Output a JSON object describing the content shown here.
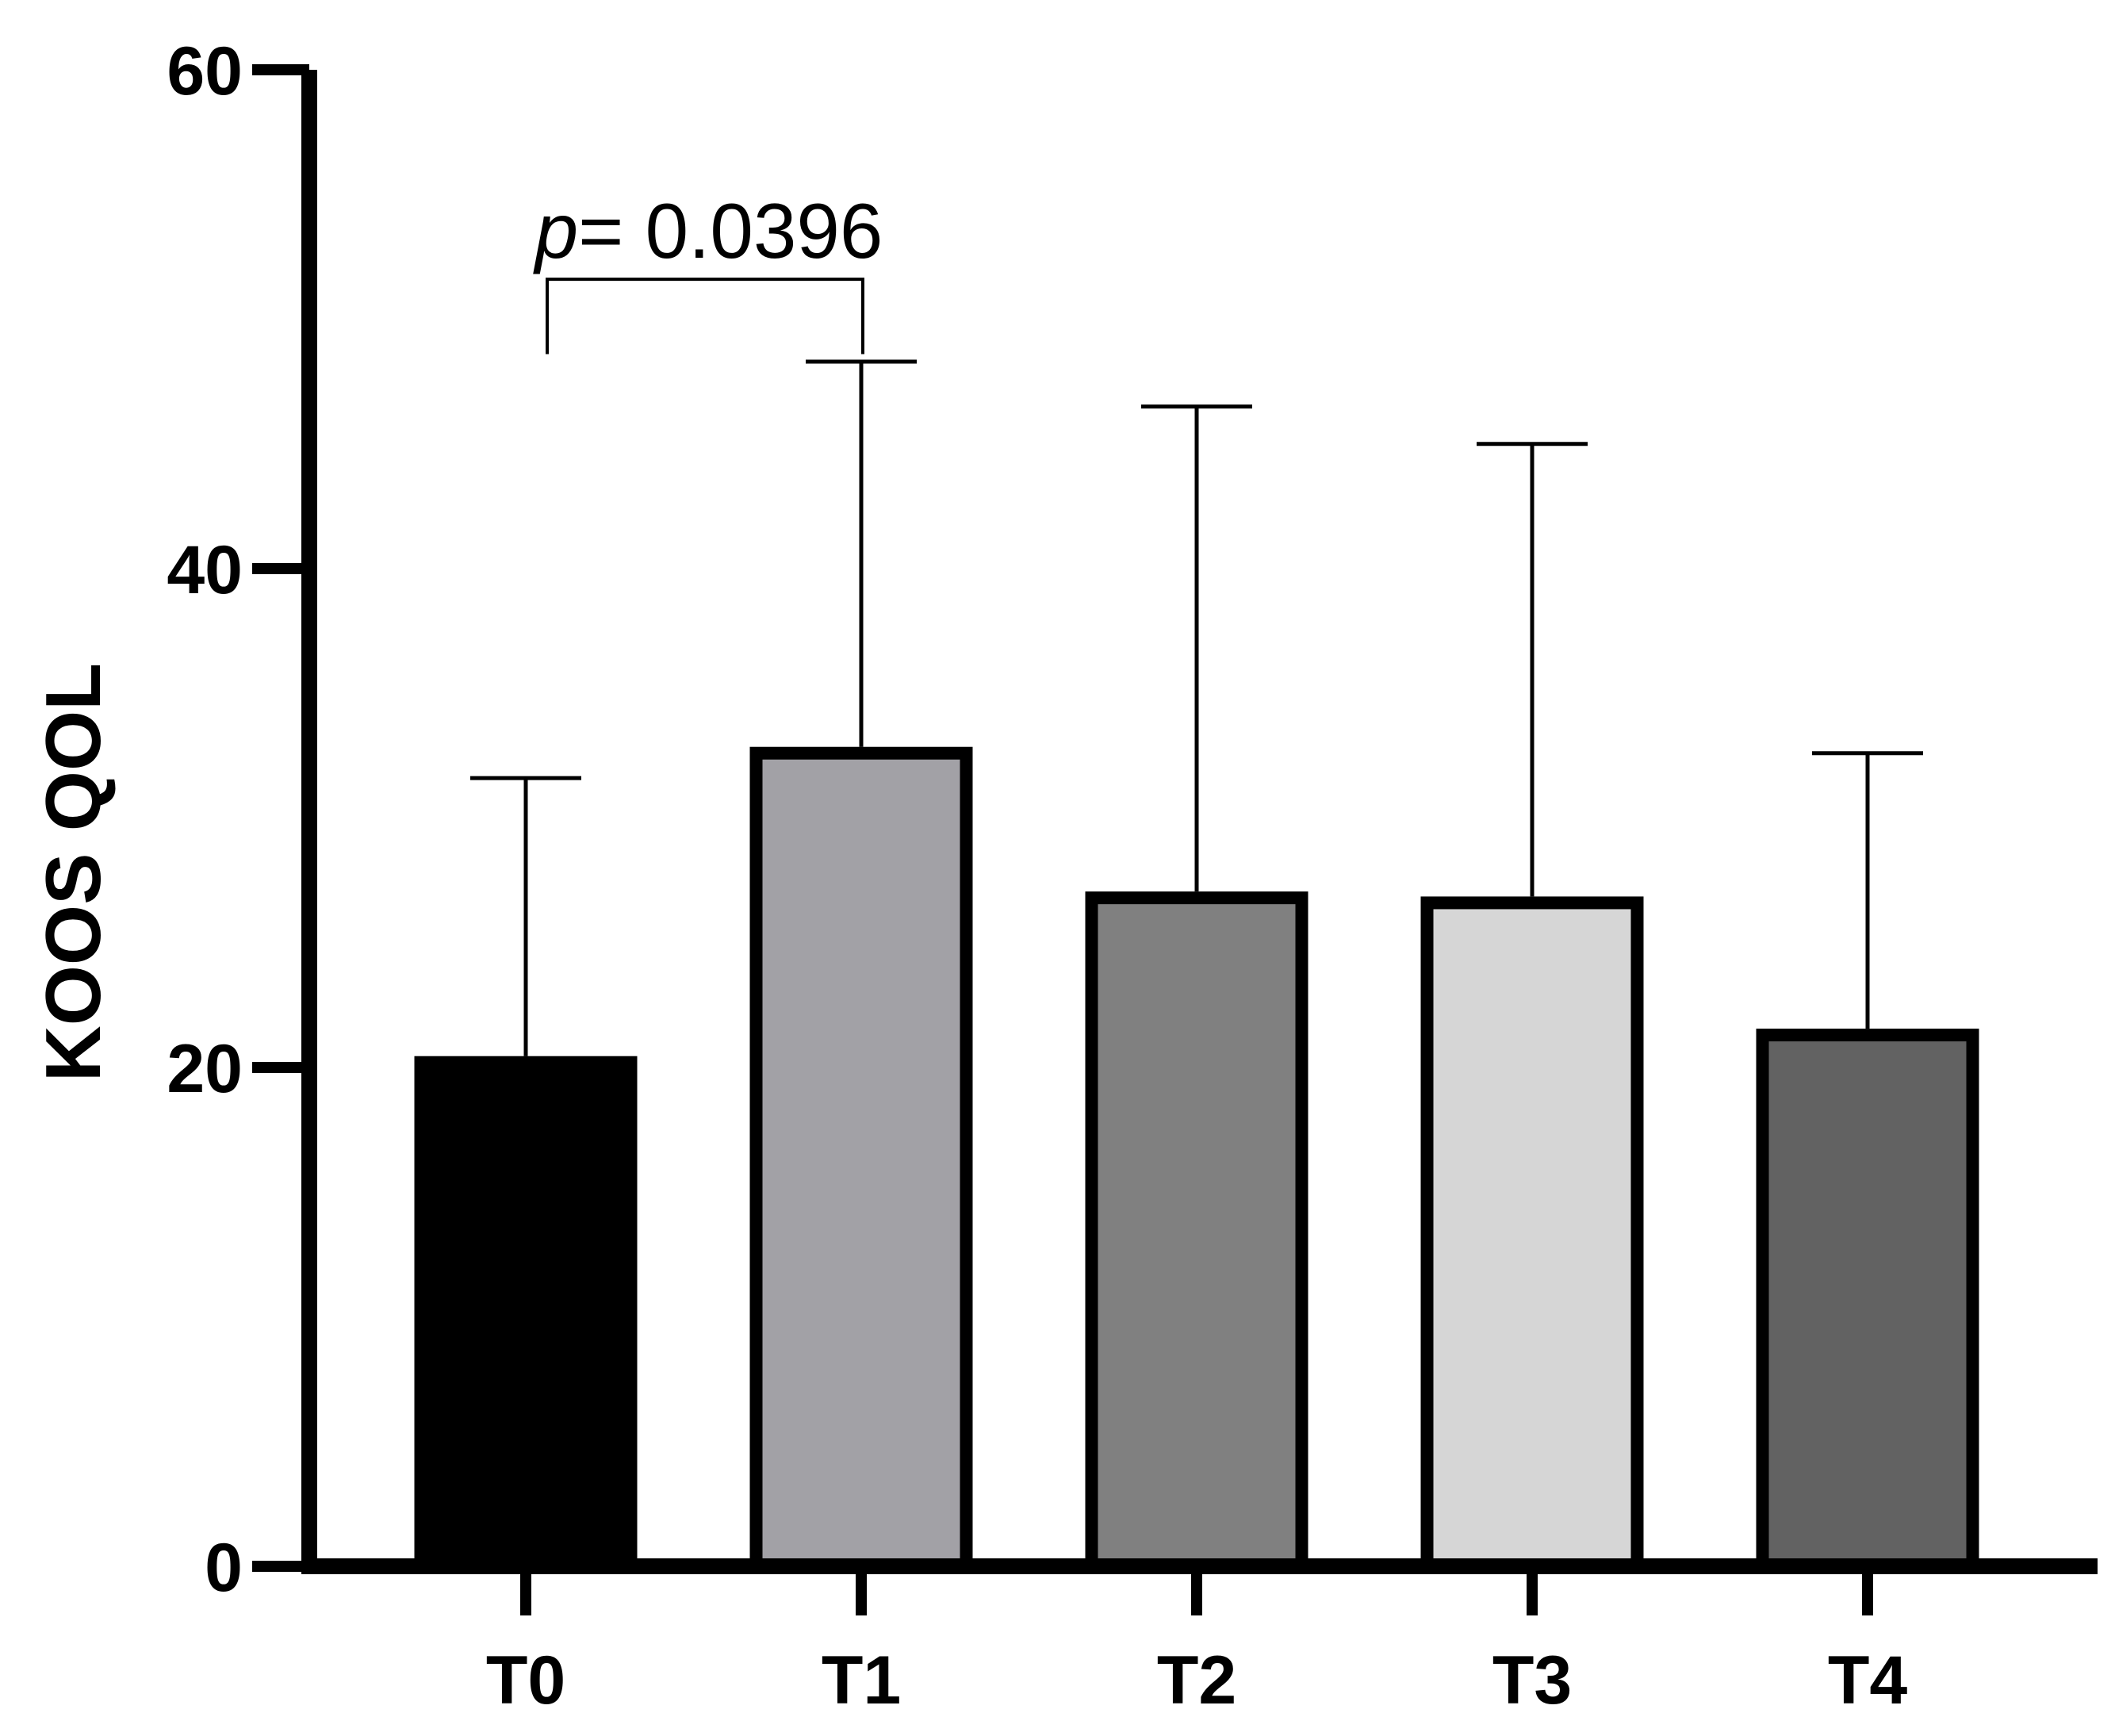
{
  "chart_data": {
    "type": "bar",
    "title": "",
    "xlabel": "",
    "ylabel": "KOOS QOL",
    "categories": [
      "T0",
      "T1",
      "T2",
      "T3",
      "T4"
    ],
    "values": [
      20.2,
      32.6,
      26.8,
      26.6,
      21.3
    ],
    "error_upper": [
      31.6,
      48.3,
      46.5,
      45.0,
      32.6
    ],
    "colors": [
      "#000000",
      "#a2a1a6",
      "#808080",
      "#d6d6d6",
      "#626262"
    ],
    "ylim": [
      0,
      60
    ],
    "yticks": [
      0,
      20,
      40,
      60
    ],
    "grid": false,
    "annotation": {
      "p_label": "p",
      "text": "= 0.0396",
      "from_category": "T0",
      "to_category": "T1",
      "bracket_y": 51.6,
      "leg_bottom_y": 48.6
    }
  }
}
